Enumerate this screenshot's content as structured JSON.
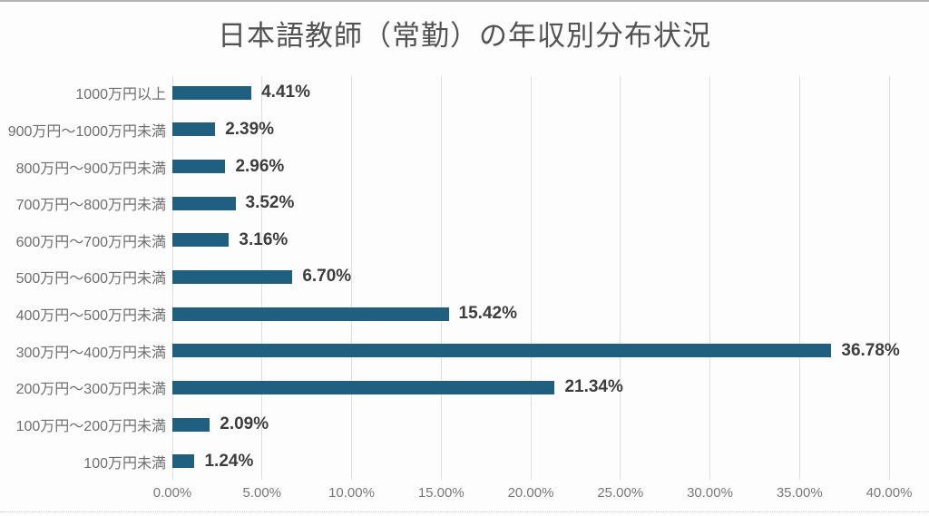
{
  "page": {
    "background": "#fdfdfd",
    "top_border_color": "#b5b5b5"
  },
  "chart_data": {
    "type": "bar",
    "orientation": "horizontal",
    "title": "日本語教師（常勤）の年収別分布状況",
    "categories": [
      "1000万円以上",
      "900万円～1000万円未満",
      "800万円～900万円未満",
      "700万円～800万円未満",
      "600万円～700万円未満",
      "500万円～600万円未満",
      "400万円～500万円未満",
      "300万円～400万円未満",
      "200万円～300万円未満",
      "100万円～200万円未満",
      "100万円未満"
    ],
    "values": [
      4.41,
      2.39,
      2.96,
      3.52,
      3.16,
      6.7,
      15.42,
      36.78,
      21.34,
      2.09,
      1.24
    ],
    "value_labels": [
      "4.41%",
      "2.39%",
      "2.96%",
      "3.52%",
      "3.16%",
      "6.70%",
      "15.42%",
      "36.78%",
      "21.34%",
      "2.09%",
      "1.24%"
    ],
    "x_ticks": {
      "values": [
        0,
        5,
        10,
        15,
        20,
        25,
        30,
        35,
        40
      ],
      "labels": [
        "0.00%",
        "5.00%",
        "10.00%",
        "15.00%",
        "20.00%",
        "25.00%",
        "30.00%",
        "35.00%",
        "40.00%"
      ]
    },
    "xlim": [
      0,
      40
    ],
    "xlabel": "",
    "ylabel": "",
    "bar_color": "#1f5f7f",
    "grid": true,
    "legend": "none"
  }
}
